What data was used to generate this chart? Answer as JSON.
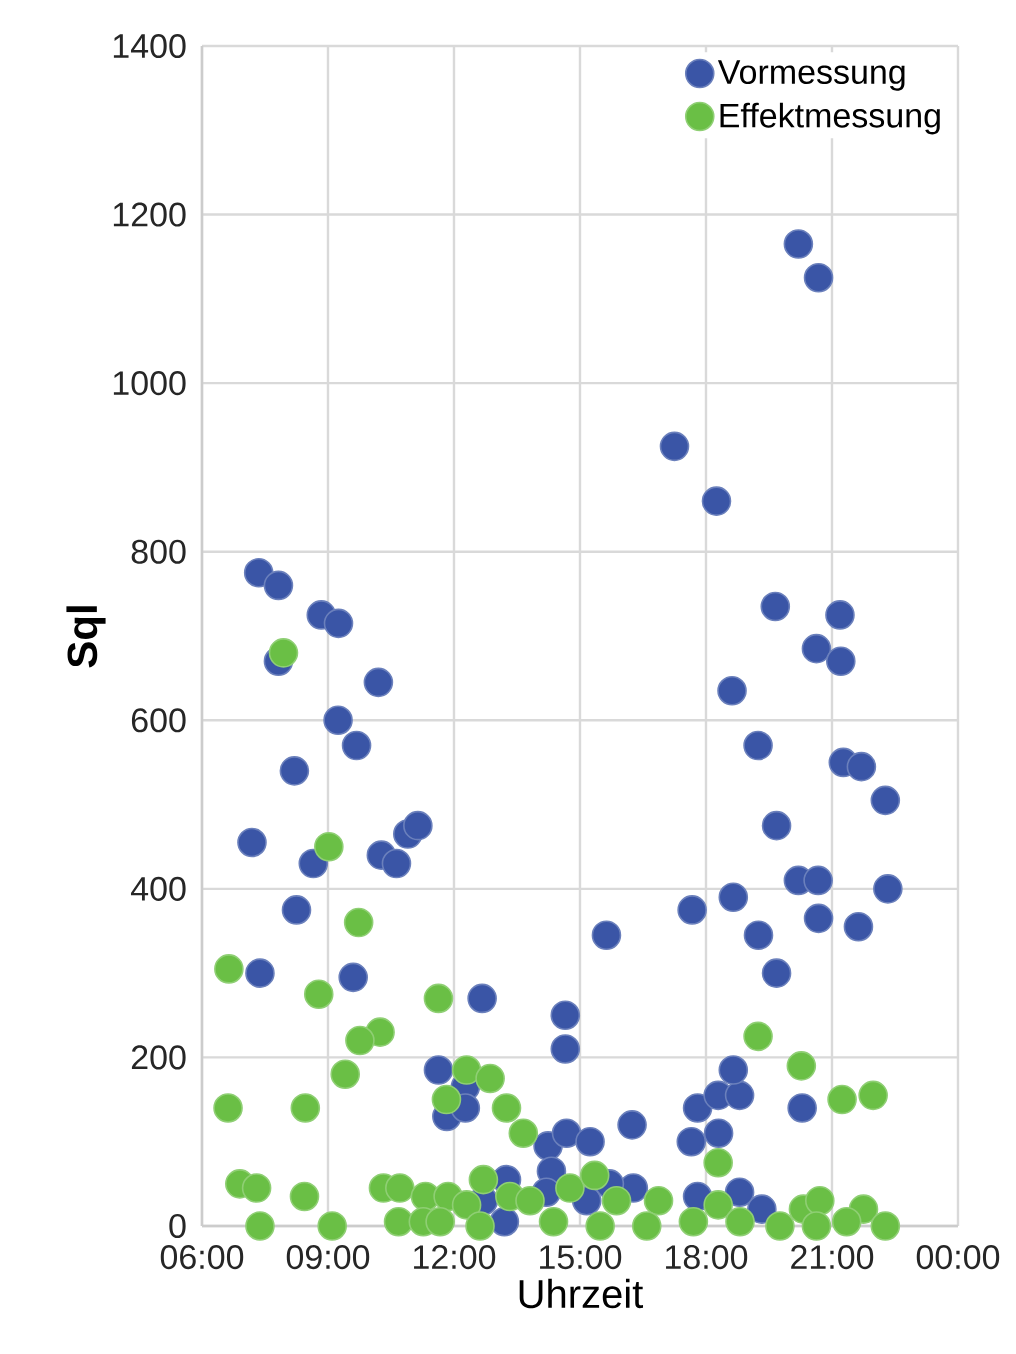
{
  "chart_data": {
    "type": "scatter",
    "xlabel": "Uhrzeit",
    "ylabel": "Sql",
    "xlim": [
      6,
      24
    ],
    "ylim": [
      0,
      1400
    ],
    "xticks": [
      {
        "value": 6,
        "label": "06:00"
      },
      {
        "value": 9,
        "label": "09:00"
      },
      {
        "value": 12,
        "label": "12:00"
      },
      {
        "value": 15,
        "label": "15:00"
      },
      {
        "value": 18,
        "label": "18:00"
      },
      {
        "value": 21,
        "label": "21:00"
      },
      {
        "value": 24,
        "label": "00:00"
      }
    ],
    "yticks": [
      0,
      200,
      400,
      600,
      800,
      1000,
      1200,
      1400
    ],
    "grid": true,
    "legend": "top right",
    "marker": "circle",
    "series": [
      {
        "name": "Vormessung",
        "color": "#3a55a6",
        "x": [
          7.35,
          7.82,
          7.82,
          8.2,
          7.19,
          7.38,
          8.84,
          9.25,
          10.2,
          9.24,
          9.68,
          8.25,
          8.65,
          9.6,
          10.27,
          10.63,
          10.9,
          11.14,
          12.67,
          14.65,
          14.65,
          15.63,
          11.63,
          12.27,
          11.83,
          12.27,
          14.24,
          14.68,
          15.24,
          14.32,
          13.25,
          14.2,
          12.7,
          13.2,
          16.24,
          17.65,
          17.8,
          18.29,
          18.8,
          18.65,
          18.3,
          20.29,
          17.67,
          18.65,
          19.25,
          19.68,
          20.2,
          20.67,
          20.68,
          21.63,
          22.33,
          19.68,
          19.24,
          18.62,
          19.65,
          20.63,
          21.19,
          21.21,
          21.27,
          21.7,
          22.27,
          17.25,
          18.25,
          20.2,
          20.68,
          16.27,
          18.8,
          17.8,
          19.33,
          15.16,
          15.7
        ],
        "values": [
          775,
          760,
          670,
          540,
          455,
          300,
          725,
          715,
          645,
          600,
          570,
          375,
          430,
          295,
          440,
          430,
          465,
          475,
          270,
          250,
          210,
          345,
          185,
          165,
          130,
          140,
          95,
          110,
          100,
          65,
          55,
          40,
          30,
          5,
          120,
          100,
          140,
          155,
          155,
          185,
          110,
          140,
          375,
          390,
          345,
          300,
          410,
          410,
          365,
          355,
          400,
          475,
          570,
          635,
          735,
          685,
          725,
          670,
          550,
          545,
          505,
          925,
          860,
          1165,
          1125,
          45,
          40,
          35,
          20,
          30,
          50
        ]
      },
      {
        "name": "Effektmessung",
        "color": "#6abf45",
        "x": [
          7.94,
          9.02,
          9.73,
          6.64,
          8.78,
          11.63,
          10.24,
          9.76,
          9.41,
          12.3,
          12.86,
          11.82,
          13.25,
          13.65,
          6.62,
          8.46,
          6.9,
          7.3,
          8.44,
          10.32,
          10.71,
          11.32,
          11.86,
          12.7,
          7.38,
          9.1,
          10.68,
          11.27,
          11.67,
          12.3,
          12.62,
          13.33,
          13.81,
          14.37,
          14.76,
          15.35,
          19.24,
          20.27,
          21.24,
          21.98,
          18.29,
          15.87,
          16.87,
          18.29,
          20.32,
          20.71,
          21.75,
          21.35,
          22.27,
          20.63,
          19.76,
          18.81,
          17.7,
          16.59,
          15.48
        ],
        "values": [
          680,
          450,
          360,
          305,
          275,
          270,
          230,
          220,
          180,
          185,
          175,
          150,
          140,
          110,
          140,
          140,
          50,
          45,
          35,
          45,
          45,
          35,
          35,
          55,
          0,
          0,
          5,
          5,
          5,
          25,
          0,
          35,
          30,
          5,
          45,
          60,
          225,
          190,
          150,
          155,
          75,
          30,
          30,
          25,
          20,
          30,
          20,
          5,
          0,
          0,
          0,
          5,
          5,
          0,
          0
        ]
      }
    ]
  }
}
